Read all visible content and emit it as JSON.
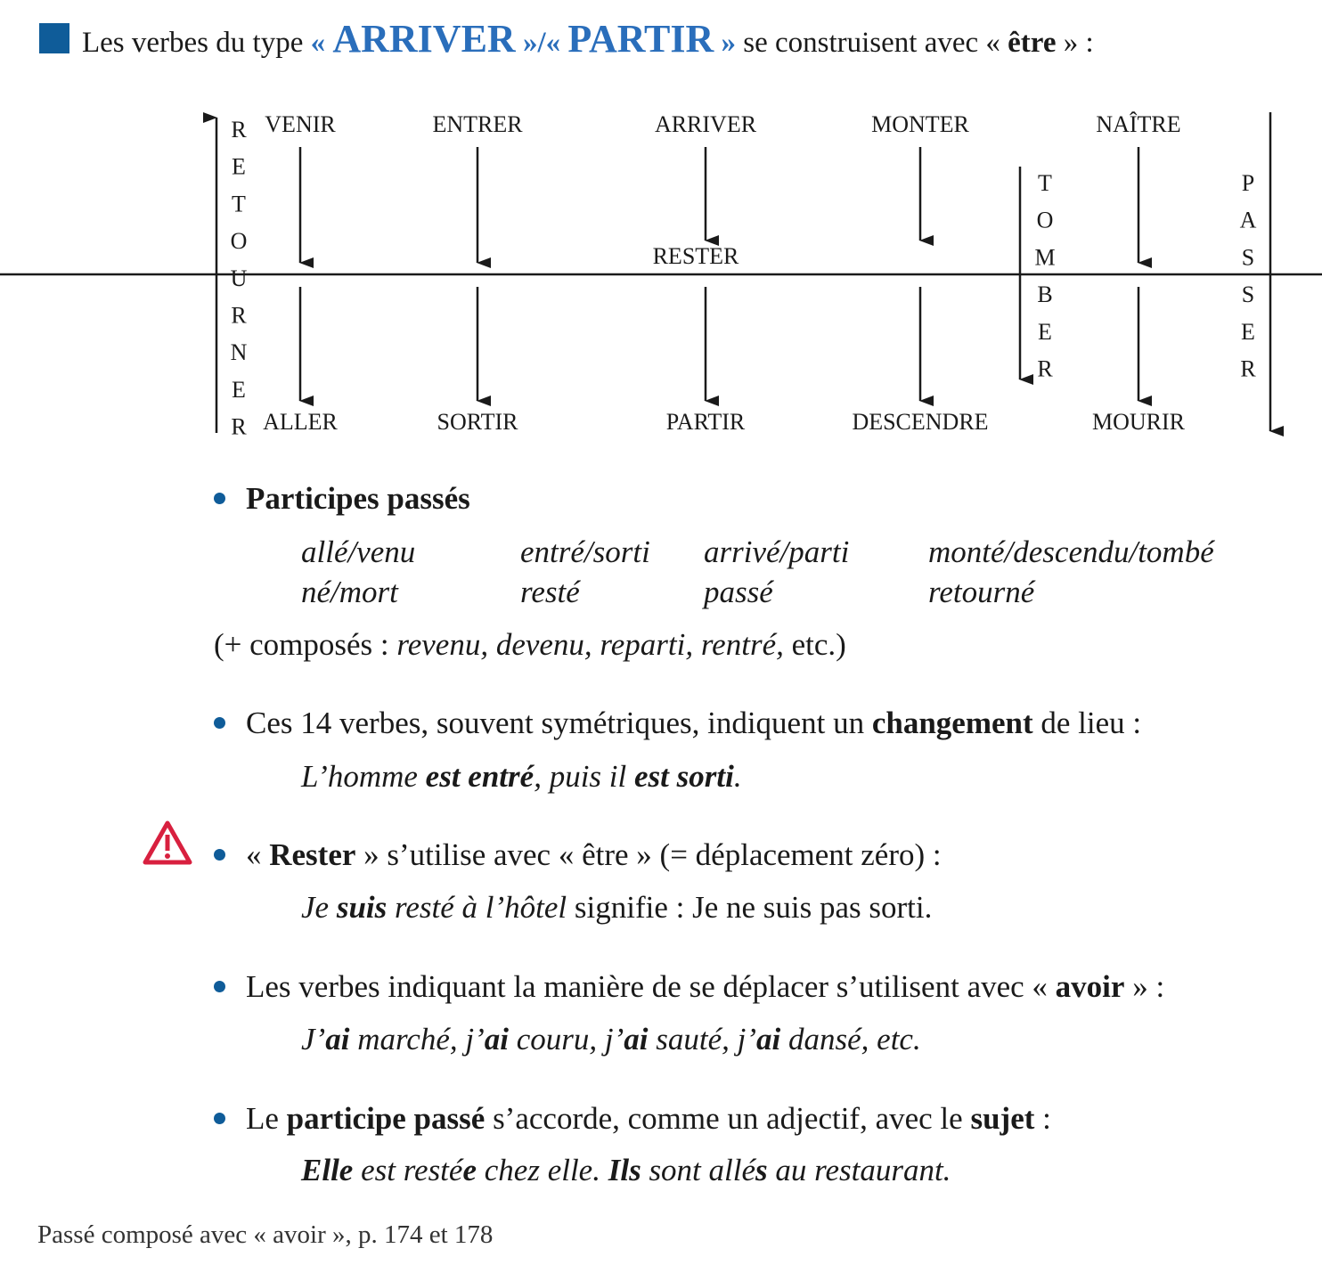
{
  "title": {
    "prefix": "Les verbes du type",
    "open_quote_1": "«",
    "verb1": "ARRIVER",
    "separator": "»/«",
    "verb2": "PARTIR",
    "close_quote_2": "»",
    "middle": "se construisent avec",
    "open_quote_3": "«",
    "aux": "être",
    "suffix": "» :"
  },
  "diagram": {
    "side_left": [
      "R",
      "E",
      "T",
      "O",
      "U",
      "R",
      "N",
      "E",
      "R"
    ],
    "side_tomber": [
      "T",
      "O",
      "M",
      "B",
      "E",
      "R"
    ],
    "side_right": [
      "P",
      "A",
      "S",
      "S",
      "E",
      "R"
    ],
    "columns": [
      {
        "top": "VENIR",
        "bottom": "ALLER"
      },
      {
        "top": "ENTRER",
        "bottom": "SORTIR"
      },
      {
        "top": "ARRIVER",
        "middle": "RESTER",
        "bottom": "PARTIR"
      },
      {
        "top": "MONTER",
        "bottom": "DESCENDRE"
      },
      {
        "top": "NAÎTRE",
        "bottom": "MOURIR"
      }
    ]
  },
  "participes": {
    "heading": "Participes passés",
    "row1": [
      "allé/venu",
      "entré/sorti",
      "arrivé/parti",
      "monté/descendu/tombé"
    ],
    "row2": [
      "né/mort",
      "resté",
      "passé",
      "retourné"
    ],
    "composes_prefix": "(+ composés :",
    "composes_list": "revenu, devenu, reparti, rentré,",
    "composes_suffix": "etc.)"
  },
  "point1": {
    "a": "Ces 14 verbes, souvent symétriques, indiquent un",
    "b": "changement",
    "c": "de lieu :",
    "ex_a": "L’homme",
    "ex_b": "est entré",
    "ex_c": ", puis il",
    "ex_d": "est sorti",
    "ex_e": "."
  },
  "point2": {
    "a": "«",
    "b": "Rester",
    "c": "» s’utilise avec « être » (= déplacement zéro) :",
    "ex_a": "Je",
    "ex_b": "suis",
    "ex_c": "resté à l’hôtel",
    "ex_d": "signifie : Je ne suis pas sorti."
  },
  "point3": {
    "a": "Les verbes indiquant la manière de se déplacer s’utilisent avec «",
    "b": "avoir",
    "c": "» :",
    "ex": [
      {
        "t": "J’",
        "b": false
      },
      {
        "t": "ai",
        "b": true
      },
      {
        "t": " marché, j’",
        "b": false
      },
      {
        "t": "ai",
        "b": true
      },
      {
        "t": " couru, j’",
        "b": false
      },
      {
        "t": "ai",
        "b": true
      },
      {
        "t": " sauté, j’",
        "b": false
      },
      {
        "t": "ai",
        "b": true
      },
      {
        "t": " dansé, etc.",
        "b": false
      }
    ]
  },
  "point4": {
    "a": "Le",
    "b": "participe passé",
    "c": "s’accorde, comme un adjectif, avec le",
    "d": "sujet",
    "e": ":",
    "ex": [
      {
        "t": "Elle",
        "b": true
      },
      {
        "t": " est resté",
        "b": false
      },
      {
        "t": "e",
        "b": true
      },
      {
        "t": " chez elle. ",
        "b": false
      },
      {
        "t": "Ils",
        "b": true
      },
      {
        "t": " sont allé",
        "b": false
      },
      {
        "t": "s",
        "b": true
      },
      {
        "t": " au restaurant.",
        "b": false
      }
    ]
  },
  "footer": "Passé composé avec « avoir », p. 174 et 178",
  "colors": {
    "accent": "#2a6ebb",
    "square": "#0f5c99",
    "bullet": "#0f5c99",
    "warning": "#d8203f"
  }
}
